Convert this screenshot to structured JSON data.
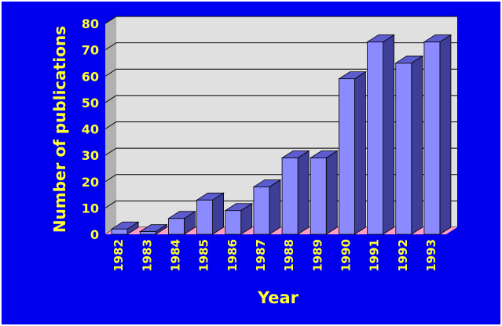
{
  "chart_data": {
    "type": "bar",
    "categories": [
      "1982",
      "1983",
      "1984",
      "1985",
      "1986",
      "1987",
      "1988",
      "1989",
      "1990",
      "1991",
      "1992",
      "1993"
    ],
    "values": [
      2,
      1,
      6,
      13,
      9,
      18,
      29,
      29,
      59,
      73,
      65,
      73
    ],
    "title": "",
    "xlabel": "Year",
    "ylabel": "Number of publications",
    "ylim": [
      0,
      80
    ],
    "yticks": [
      "0",
      "10",
      "20",
      "30",
      "40",
      "50",
      "60",
      "70",
      "80"
    ],
    "grid": true,
    "legend": "none",
    "colors": {
      "background": "#0000ee",
      "plot_area": "#e0e0e0",
      "plot_side_wall": "#b0b0b0",
      "floor": "#ff9fc6",
      "bar_front": "#8b8bff",
      "bar_top": "#5c5cd0",
      "bar_side": "#3e3e96",
      "label_text": "#ffff33",
      "gridline": "#000000"
    }
  }
}
